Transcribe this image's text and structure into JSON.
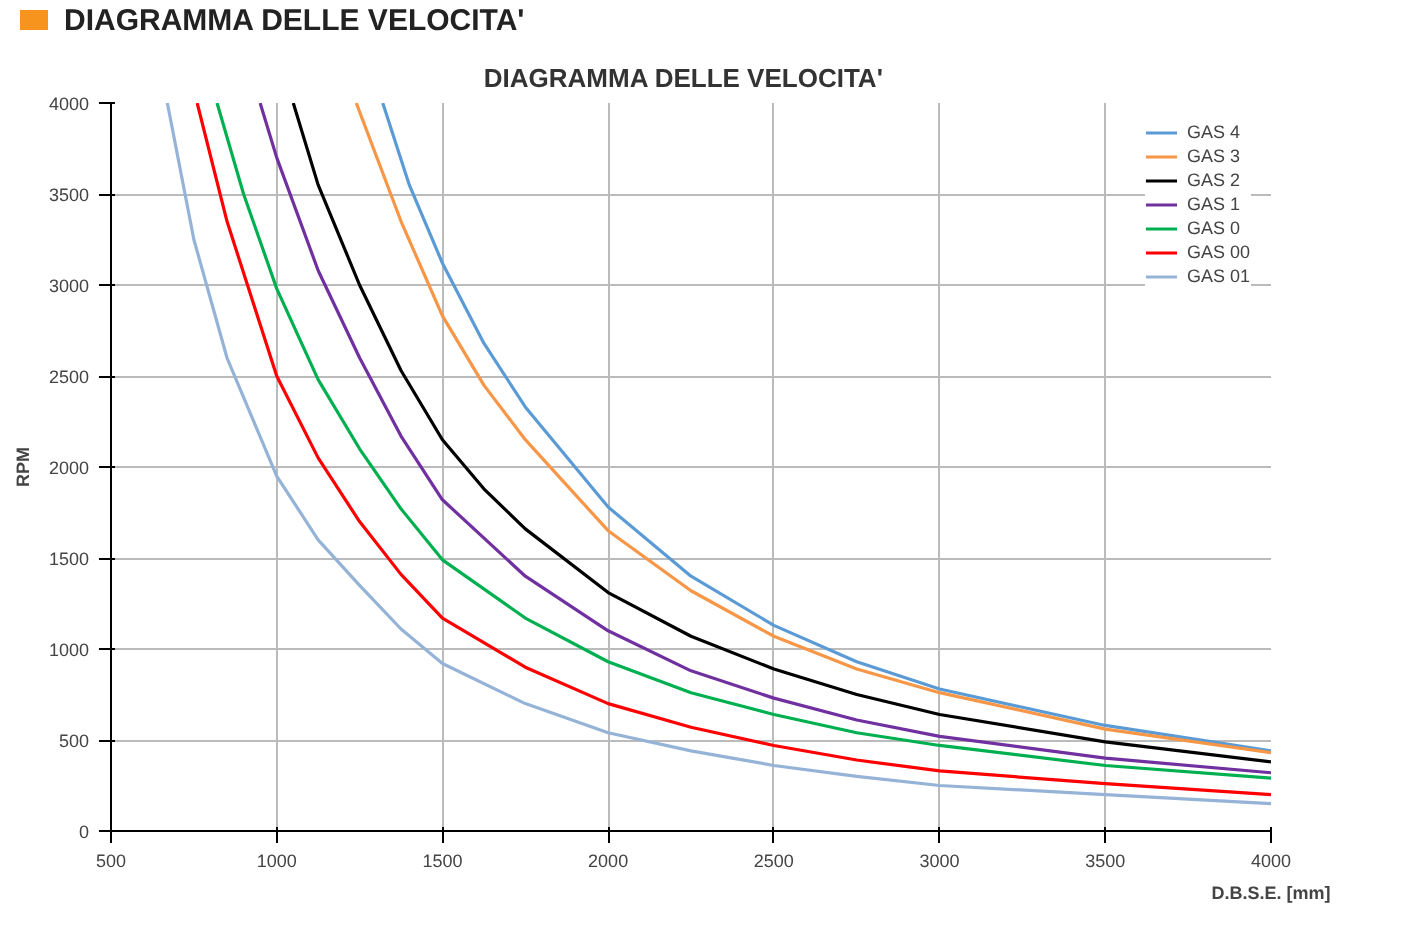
{
  "chart_data": {
    "type": "line",
    "title": "DIAGRAMMA  DELLE  VELOCITA'",
    "xlabel": "D.B.S.E. [mm]",
    "ylabel": "RPM",
    "annotations": [
      "DIAGRAMMA DELLE VELOCITA'"
    ],
    "xlim": [
      500,
      4000
    ],
    "xticks": [
      500,
      1000,
      1500,
      2000,
      2500,
      3000,
      3500,
      4000
    ],
    "ylim": [
      0,
      4000
    ],
    "yticks": [
      0,
      500,
      1000,
      1500,
      2000,
      2500,
      3000,
      3500,
      4000
    ],
    "grid": true,
    "legend": "top right",
    "marker": "none",
    "line_style": "solid",
    "series": [
      {
        "name": "GAS 4",
        "color": "#5b9bd5",
        "x": [
          1320,
          1400,
          1500,
          1625,
          1750,
          2000,
          2250,
          2500,
          2750,
          3000,
          3500,
          4000
        ],
        "values": [
          4000,
          3550,
          3120,
          2680,
          2330,
          1780,
          1400,
          1130,
          930,
          780,
          580,
          440
        ]
      },
      {
        "name": "GAS 3",
        "color": "#f79646",
        "x": [
          1240,
          1375,
          1500,
          1625,
          1750,
          2000,
          2250,
          2500,
          2750,
          3000,
          3500,
          4000
        ],
        "values": [
          4000,
          3350,
          2830,
          2450,
          2150,
          1650,
          1320,
          1070,
          890,
          760,
          560,
          430
        ]
      },
      {
        "name": "GAS 2",
        "color": "#000000",
        "x": [
          1050,
          1125,
          1250,
          1375,
          1500,
          1625,
          1750,
          2000,
          2250,
          2500,
          2750,
          3000,
          3500,
          4000
        ],
        "values": [
          4000,
          3550,
          3000,
          2530,
          2150,
          1880,
          1660,
          1310,
          1070,
          890,
          750,
          640,
          490,
          380
        ]
      },
      {
        "name": "GAS 1",
        "color": "#7030a0",
        "x": [
          950,
          1000,
          1125,
          1250,
          1375,
          1500,
          1750,
          2000,
          2250,
          2500,
          2750,
          3000,
          3500,
          4000
        ],
        "values": [
          4000,
          3700,
          3080,
          2600,
          2170,
          1820,
          1400,
          1100,
          880,
          730,
          610,
          520,
          400,
          320
        ]
      },
      {
        "name": "GAS 0",
        "color": "#00b050",
        "x": [
          820,
          900,
          1000,
          1125,
          1250,
          1375,
          1500,
          1750,
          2000,
          2250,
          2500,
          2750,
          3000,
          3500,
          4000
        ],
        "values": [
          4000,
          3500,
          2980,
          2480,
          2100,
          1770,
          1490,
          1170,
          930,
          760,
          640,
          540,
          470,
          360,
          290
        ]
      },
      {
        "name": "GAS 00",
        "color": "#ff0000",
        "x": [
          760,
          850,
          1000,
          1125,
          1250,
          1375,
          1500,
          1750,
          2000,
          2250,
          2500,
          2750,
          3000,
          3500,
          4000
        ],
        "values": [
          4000,
          3350,
          2500,
          2050,
          1700,
          1410,
          1170,
          900,
          700,
          570,
          470,
          390,
          330,
          260,
          200
        ]
      },
      {
        "name": "GAS 01",
        "color": "#95b3d7",
        "x": [
          670,
          750,
          850,
          1000,
          1125,
          1250,
          1375,
          1500,
          1750,
          2000,
          2250,
          2500,
          2750,
          3000,
          3500,
          4000
        ],
        "values": [
          4000,
          3250,
          2600,
          1950,
          1600,
          1350,
          1110,
          920,
          700,
          540,
          440,
          360,
          300,
          250,
          200,
          150
        ]
      }
    ]
  }
}
